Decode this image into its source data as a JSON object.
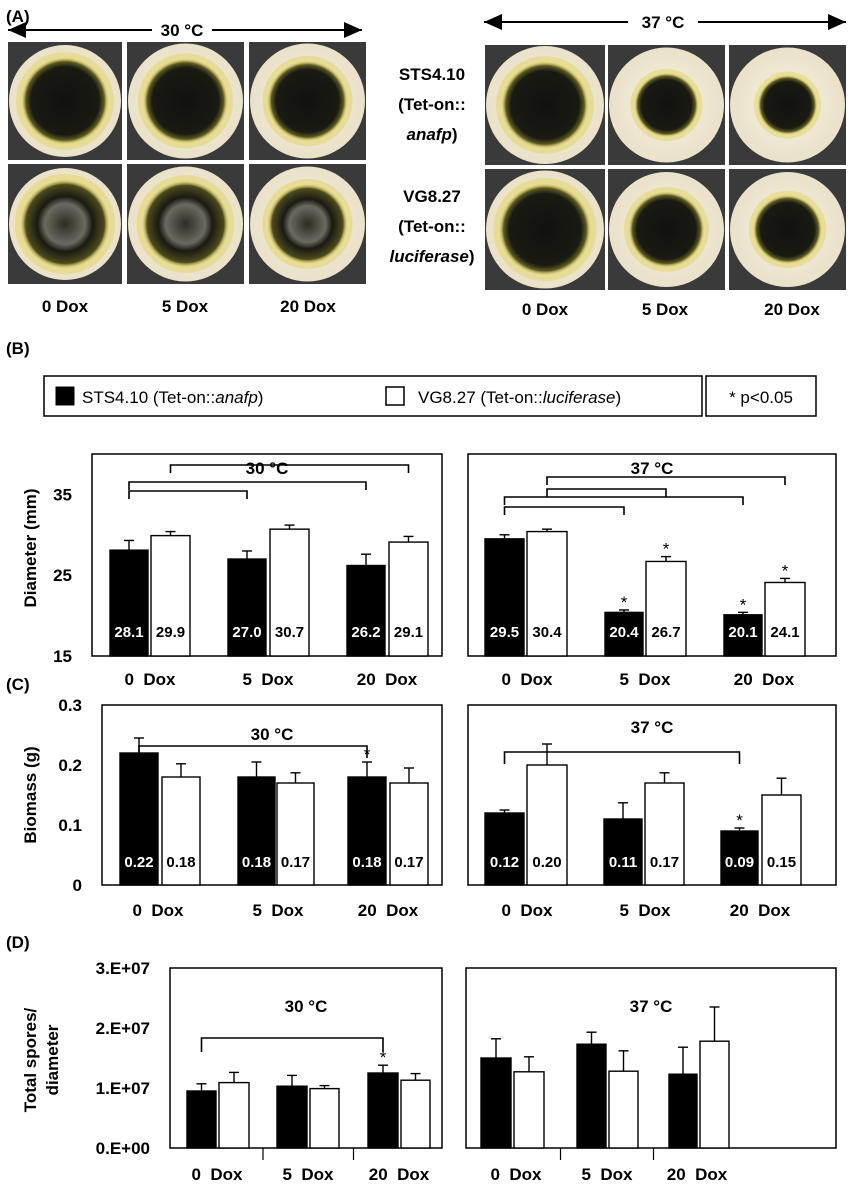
{
  "panels": {
    "A": {
      "label": "(A)",
      "temp_left": "30 °C",
      "temp_right": "37 °C",
      "strain1": {
        "line1": "STS4.10",
        "line2_prefix": "(Tet-on::",
        "line3": "anafp",
        "line3_suffix": ")"
      },
      "strain2": {
        "line1": "VG8.27",
        "line2_prefix": "(Tet-on::",
        "line3": "luciferase",
        "line3_suffix": ")"
      },
      "conditions": [
        "0 Dox",
        "5 Dox",
        "20 Dox"
      ]
    },
    "B": {
      "label": "(B)"
    },
    "C": {
      "label": "(C)"
    },
    "D": {
      "label": "(D)"
    }
  },
  "legend": {
    "series1_prefix": "STS4.10 (Tet-on::",
    "series1_italic": "anafp",
    "series1_suffix": ")",
    "series2_prefix": "VG8.27 (Tet-on::",
    "series2_italic": "luciferase",
    "series2_suffix": ")",
    "significance": "* p<0.05",
    "colors": {
      "series1": "#000000",
      "series2": "#ffffff"
    }
  },
  "chart_data": [
    {
      "id": "B-30",
      "type": "bar",
      "title": "30 °C",
      "ylabel": "Diameter (mm)",
      "xlabel": "",
      "ylim": [
        15,
        40
      ],
      "yticks": [
        15,
        25,
        35
      ],
      "ytick_labels": [
        "15",
        "25",
        "35"
      ],
      "categories": [
        "0  Dox",
        "5  Dox",
        "20  Dox"
      ],
      "series": [
        {
          "name": "STS4.10",
          "values": [
            28.1,
            27.0,
            26.2
          ],
          "errors": [
            1.2,
            1.0,
            1.4
          ],
          "labels": [
            "28.1",
            "27.0",
            "26.2"
          ],
          "sig": [
            false,
            false,
            false
          ]
        },
        {
          "name": "VG8.27",
          "values": [
            29.9,
            30.7,
            29.1
          ],
          "errors": [
            0.5,
            0.5,
            0.7
          ],
          "labels": [
            "29.9",
            "30.7",
            "29.1"
          ],
          "sig": [
            false,
            false,
            false
          ]
        }
      ],
      "brackets": [
        {
          "from_cat": 0,
          "from_series": 0,
          "to_cat": 1,
          "to_series": 0,
          "level": 0
        },
        {
          "from_cat": 0,
          "from_series": 0,
          "to_cat": 2,
          "to_series": 0,
          "level": 1
        },
        {
          "from_cat": 0,
          "from_series": 1,
          "to_cat": 2,
          "to_series": 1,
          "level": 2
        }
      ]
    },
    {
      "id": "B-37",
      "type": "bar",
      "title": "37 °C",
      "ylabel": "",
      "xlabel": "",
      "ylim": [
        15,
        40
      ],
      "yticks": [],
      "ytick_labels": [],
      "categories": [
        "0  Dox",
        "5  Dox",
        "20  Dox"
      ],
      "series": [
        {
          "name": "STS4.10",
          "values": [
            29.5,
            20.4,
            20.1
          ],
          "errors": [
            0.5,
            0.3,
            0.3
          ],
          "labels": [
            "29.5",
            "20.4",
            "20.1"
          ],
          "sig": [
            false,
            true,
            true
          ]
        },
        {
          "name": "VG8.27",
          "values": [
            30.4,
            26.7,
            24.1
          ],
          "errors": [
            0.3,
            0.6,
            0.5
          ],
          "labels": [
            "30.4",
            "26.7",
            "24.1"
          ],
          "sig": [
            false,
            true,
            true
          ]
        }
      ],
      "brackets": [
        {
          "from_cat": 0,
          "from_series": 0,
          "to_cat": 1,
          "to_series": 0,
          "level": 0
        },
        {
          "from_cat": 0,
          "from_series": 0,
          "to_cat": 2,
          "to_series": 0,
          "level": 1
        },
        {
          "from_cat": 0,
          "from_series": 1,
          "to_cat": 1,
          "to_series": 1,
          "level": 2
        },
        {
          "from_cat": 0,
          "from_series": 1,
          "to_cat": 2,
          "to_series": 1,
          "level": 3
        }
      ]
    },
    {
      "id": "C-30",
      "type": "bar",
      "title": "30 °C",
      "ylabel": "Biomass (g)",
      "xlabel": "",
      "ylim": [
        0,
        0.3
      ],
      "yticks": [
        0,
        0.1,
        0.2,
        0.3
      ],
      "ytick_labels": [
        "0",
        "0.1",
        "0.2",
        "0.3"
      ],
      "categories": [
        "0  Dox",
        "5  Dox",
        "20  Dox"
      ],
      "series": [
        {
          "name": "STS4.10",
          "values": [
            0.22,
            0.18,
            0.18
          ],
          "errors": [
            0.025,
            0.025,
            0.025
          ],
          "labels": [
            "0.22",
            "0.18",
            "0.18"
          ],
          "sig": [
            false,
            false,
            true
          ]
        },
        {
          "name": "VG8.27",
          "values": [
            0.18,
            0.17,
            0.17
          ],
          "errors": [
            0.022,
            0.017,
            0.025
          ],
          "labels": [
            "0.18",
            "0.17",
            "0.17"
          ],
          "sig": [
            false,
            false,
            false
          ]
        }
      ],
      "brackets": [
        {
          "from_cat": 0,
          "from_series": 0,
          "to_cat": 2,
          "to_series": 0,
          "level": 0
        }
      ]
    },
    {
      "id": "C-37",
      "type": "bar",
      "title": "37 °C",
      "ylabel": "",
      "xlabel": "",
      "ylim": [
        0,
        0.3
      ],
      "yticks": [],
      "ytick_labels": [],
      "categories": [
        "0  Dox",
        "5  Dox",
        "20  Dox"
      ],
      "series": [
        {
          "name": "STS4.10",
          "values": [
            0.12,
            0.11,
            0.09
          ],
          "errors": [
            0.005,
            0.027,
            0.005
          ],
          "labels": [
            "0.12",
            "0.11",
            "0.09"
          ],
          "sig": [
            false,
            false,
            true
          ]
        },
        {
          "name": "VG8.27",
          "values": [
            0.2,
            0.17,
            0.15
          ],
          "errors": [
            0.035,
            0.017,
            0.028
          ],
          "labels": [
            "0.20",
            "0.17",
            "0.15"
          ],
          "sig": [
            false,
            false,
            false
          ]
        }
      ],
      "brackets": [
        {
          "from_cat": 0,
          "from_series": 0,
          "to_cat": 2,
          "to_series": 0,
          "level": 0
        }
      ]
    },
    {
      "id": "D-30",
      "type": "bar",
      "title": "30 °C",
      "ylabel": "Total spores/ diameter",
      "xlabel": "",
      "ylim": [
        0,
        30000000
      ],
      "yticks": [
        0,
        10000000,
        20000000,
        30000000
      ],
      "ytick_labels": [
        "0.E+00",
        "1.E+07",
        "2.E+07",
        "3.E+07"
      ],
      "categories": [
        "0  Dox",
        "5  Dox",
        "20  Dox"
      ],
      "series": [
        {
          "name": "STS4.10",
          "values": [
            9500000,
            10300000,
            12500000
          ],
          "errors": [
            1200000,
            1800000,
            1300000
          ],
          "labels": null,
          "sig": [
            false,
            false,
            true
          ]
        },
        {
          "name": "VG8.27",
          "values": [
            10900000,
            9900000,
            11300000
          ],
          "errors": [
            1700000,
            500000,
            1100000
          ],
          "labels": null,
          "sig": [
            false,
            false,
            false
          ]
        }
      ],
      "brackets": [
        {
          "from_cat": 0,
          "from_series": 0,
          "to_cat": 2,
          "to_series": 0,
          "level": 0
        }
      ]
    },
    {
      "id": "D-37",
      "type": "bar",
      "title": "37 °C",
      "ylabel": "",
      "xlabel": "",
      "ylim": [
        0,
        30000000
      ],
      "yticks": [],
      "ytick_labels": [],
      "categories": [
        "0  Dox",
        "5  Dox",
        "20  Dox"
      ],
      "series": [
        {
          "name": "STS4.10",
          "values": [
            15000000,
            17300000,
            12300000
          ],
          "errors": [
            3200000,
            2000000,
            4500000
          ],
          "labels": null,
          "sig": [
            false,
            false,
            false
          ]
        },
        {
          "name": "VG8.27",
          "values": [
            12700000,
            12800000,
            17800000
          ],
          "errors": [
            2500000,
            3400000,
            5700000
          ],
          "labels": null,
          "sig": [
            false,
            false,
            false
          ]
        }
      ],
      "brackets": []
    }
  ]
}
